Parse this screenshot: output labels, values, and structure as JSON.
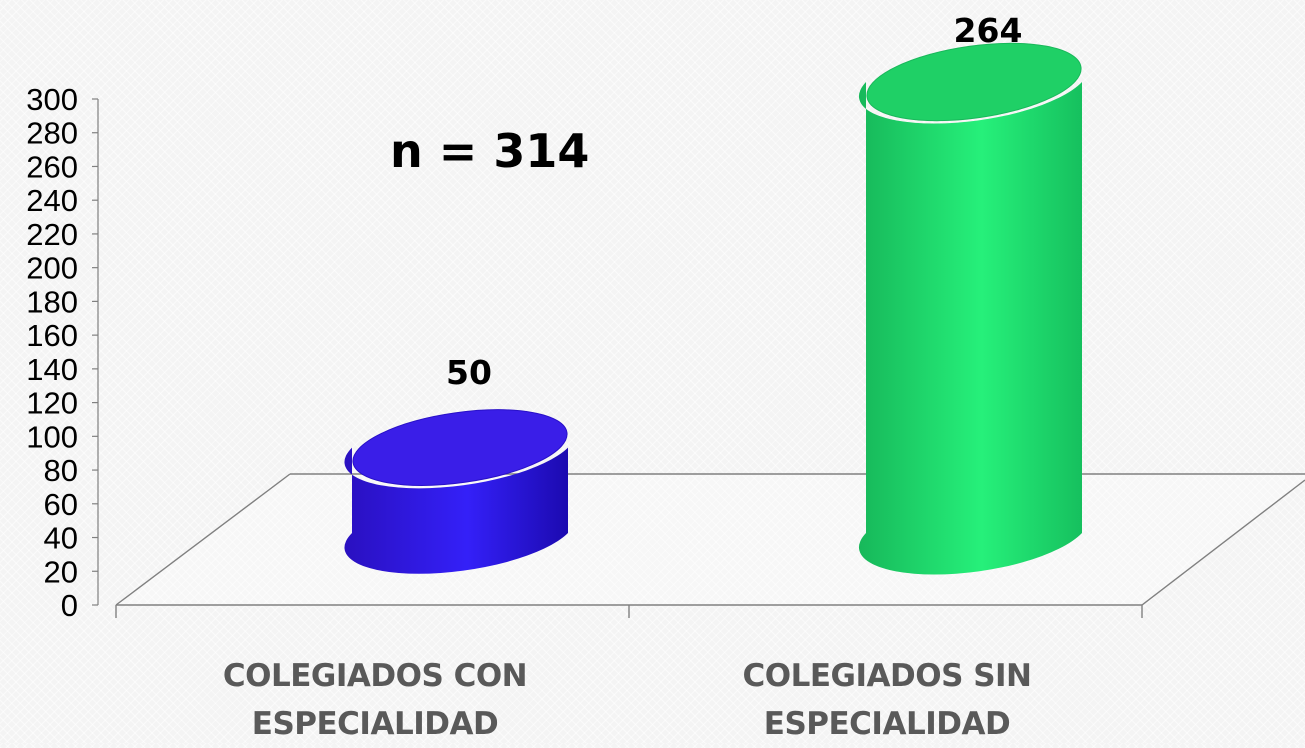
{
  "chart_data": {
    "type": "bar",
    "style": "3d-cylinder",
    "categories": [
      "COLEGIADOS CON ESPECIALIDAD",
      "COLEGIADOS SIN ESPECIALIDAD"
    ],
    "category_lines": [
      [
        "COLEGIADOS CON",
        "ESPECIALIDAD"
      ],
      [
        "COLEGIADOS SIN",
        "ESPECIALIDAD"
      ]
    ],
    "values": [
      50,
      264
    ],
    "data_labels": [
      "50",
      "264"
    ],
    "colors": [
      "#2a10f0",
      "#22ec72"
    ],
    "ylim": [
      0,
      300
    ],
    "yticks": [
      0,
      20,
      40,
      60,
      80,
      100,
      120,
      140,
      160,
      180,
      200,
      220,
      240,
      260,
      280,
      300
    ],
    "annotation": "n = 314",
    "grid": false,
    "legend": "none"
  }
}
